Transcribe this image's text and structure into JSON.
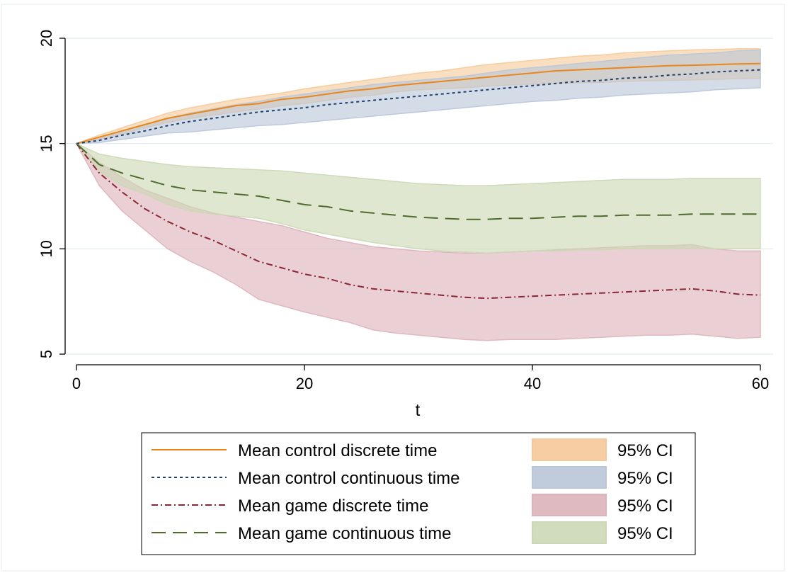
{
  "chart_data": {
    "type": "line",
    "xlabel": "t",
    "ylabel": "",
    "xlim": [
      0,
      60
    ],
    "ylim": [
      4.5,
      20.5
    ],
    "xticks": [
      0,
      20,
      40,
      60
    ],
    "yticks": [
      5,
      10,
      15,
      20
    ],
    "grid": "horizontal",
    "legend_position": "bottom",
    "x": [
      0,
      2,
      4,
      6,
      8,
      10,
      12,
      14,
      16,
      18,
      20,
      22,
      24,
      26,
      28,
      30,
      32,
      34,
      36,
      38,
      40,
      42,
      44,
      46,
      48,
      50,
      52,
      54,
      56,
      58,
      60
    ],
    "series": [
      {
        "name": "Mean control discrete time",
        "ci_name": "95% CI",
        "color": "#e8861c",
        "fill": "#f6c99a",
        "dash": "",
        "mean": [
          15.0,
          15.3,
          15.6,
          15.9,
          16.2,
          16.4,
          16.6,
          16.8,
          16.9,
          17.1,
          17.2,
          17.35,
          17.5,
          17.6,
          17.75,
          17.85,
          17.95,
          18.05,
          18.15,
          18.25,
          18.35,
          18.45,
          18.5,
          18.55,
          18.6,
          18.65,
          18.7,
          18.72,
          18.75,
          18.78,
          18.8
        ],
        "lower": [
          15.0,
          15.2,
          15.45,
          15.75,
          16.0,
          16.2,
          16.35,
          16.5,
          16.65,
          16.8,
          16.9,
          17.05,
          17.2,
          17.3,
          17.45,
          17.55,
          17.6,
          17.65,
          17.72,
          17.78,
          17.82,
          17.85,
          17.88,
          17.9,
          17.95,
          17.98,
          18.0,
          18.02,
          18.05,
          18.08,
          18.1
        ],
        "upper": [
          15.0,
          15.4,
          15.75,
          16.1,
          16.45,
          16.7,
          16.9,
          17.1,
          17.25,
          17.4,
          17.6,
          17.75,
          17.9,
          18.05,
          18.2,
          18.35,
          18.45,
          18.6,
          18.75,
          18.85,
          18.95,
          19.05,
          19.15,
          19.2,
          19.3,
          19.35,
          19.4,
          19.45,
          19.47,
          19.5,
          19.5
        ]
      },
      {
        "name": "Mean control continuous time",
        "ci_name": "95% CI",
        "color": "#1f3f6e",
        "fill": "#b9c7d8",
        "dash": "4,4",
        "mean": [
          15.0,
          15.15,
          15.4,
          15.6,
          15.85,
          16.05,
          16.2,
          16.35,
          16.5,
          16.6,
          16.7,
          16.85,
          16.95,
          17.05,
          17.15,
          17.25,
          17.35,
          17.45,
          17.55,
          17.65,
          17.75,
          17.85,
          17.95,
          18.0,
          18.1,
          18.15,
          18.25,
          18.3,
          18.4,
          18.45,
          18.5
        ],
        "lower": [
          15.0,
          15.05,
          15.2,
          15.35,
          15.5,
          15.55,
          15.65,
          15.75,
          15.85,
          15.9,
          16.0,
          16.1,
          16.2,
          16.3,
          16.4,
          16.5,
          16.6,
          16.7,
          16.8,
          16.9,
          17.0,
          17.05,
          17.15,
          17.2,
          17.3,
          17.35,
          17.4,
          17.45,
          17.55,
          17.6,
          17.65
        ],
        "upper": [
          15.0,
          15.3,
          15.6,
          15.9,
          16.2,
          16.45,
          16.65,
          16.85,
          17.0,
          17.2,
          17.35,
          17.5,
          17.65,
          17.8,
          17.9,
          18.0,
          18.1,
          18.2,
          18.35,
          18.5,
          18.6,
          18.7,
          18.8,
          18.9,
          19.0,
          19.1,
          19.2,
          19.25,
          19.3,
          19.4,
          19.45
        ]
      },
      {
        "name": "Mean game discrete time",
        "ci_name": "95% CI",
        "color": "#8b2635",
        "fill": "#ddb3ba",
        "dash": "9,4,2,4",
        "mean": [
          15.0,
          13.6,
          12.7,
          11.9,
          11.3,
          10.8,
          10.4,
          9.9,
          9.4,
          9.1,
          8.8,
          8.6,
          8.3,
          8.1,
          8.0,
          7.9,
          7.8,
          7.7,
          7.65,
          7.7,
          7.75,
          7.8,
          7.85,
          7.9,
          7.95,
          8.0,
          8.05,
          8.1,
          8.0,
          7.85,
          7.8
        ],
        "lower": [
          15.0,
          13.0,
          11.8,
          10.9,
          10.0,
          9.4,
          8.9,
          8.3,
          7.6,
          7.3,
          7.0,
          6.75,
          6.5,
          6.15,
          6.0,
          5.9,
          5.8,
          5.7,
          5.65,
          5.7,
          5.7,
          5.7,
          5.75,
          5.8,
          5.85,
          5.9,
          5.9,
          5.95,
          5.85,
          5.75,
          5.8
        ],
        "upper": [
          15.0,
          14.1,
          13.4,
          12.8,
          12.4,
          12.0,
          11.7,
          11.5,
          11.3,
          11.1,
          10.8,
          10.5,
          10.3,
          10.1,
          10.0,
          9.9,
          9.85,
          9.8,
          9.8,
          9.85,
          9.9,
          9.95,
          10.0,
          10.05,
          10.1,
          10.15,
          10.15,
          10.2,
          10.0,
          9.9,
          9.9
        ]
      },
      {
        "name": "Mean game continuous time",
        "ci_name": "95% CI",
        "color": "#4f6b2c",
        "fill": "#cbd8b4",
        "dash": "20,10",
        "mean": [
          15.0,
          14.0,
          13.6,
          13.3,
          13.0,
          12.8,
          12.7,
          12.6,
          12.5,
          12.3,
          12.1,
          12.0,
          11.8,
          11.7,
          11.6,
          11.5,
          11.45,
          11.4,
          11.4,
          11.45,
          11.45,
          11.5,
          11.55,
          11.55,
          11.6,
          11.6,
          11.6,
          11.65,
          11.65,
          11.65,
          11.65
        ],
        "lower": [
          15.0,
          13.7,
          13.0,
          12.6,
          12.1,
          11.8,
          11.65,
          11.55,
          11.45,
          11.2,
          10.9,
          10.7,
          10.5,
          10.3,
          10.15,
          10.0,
          9.9,
          9.85,
          9.8,
          9.85,
          9.9,
          9.9,
          9.95,
          9.95,
          10.0,
          10.0,
          10.0,
          10.05,
          10.0,
          10.0,
          10.0
        ],
        "upper": [
          15.0,
          14.5,
          14.3,
          14.15,
          14.0,
          13.9,
          13.85,
          13.8,
          13.75,
          13.7,
          13.6,
          13.5,
          13.4,
          13.3,
          13.2,
          13.1,
          13.05,
          13.0,
          13.0,
          13.05,
          13.1,
          13.15,
          13.2,
          13.25,
          13.3,
          13.3,
          13.3,
          13.35,
          13.35,
          13.35,
          13.35
        ]
      }
    ]
  }
}
